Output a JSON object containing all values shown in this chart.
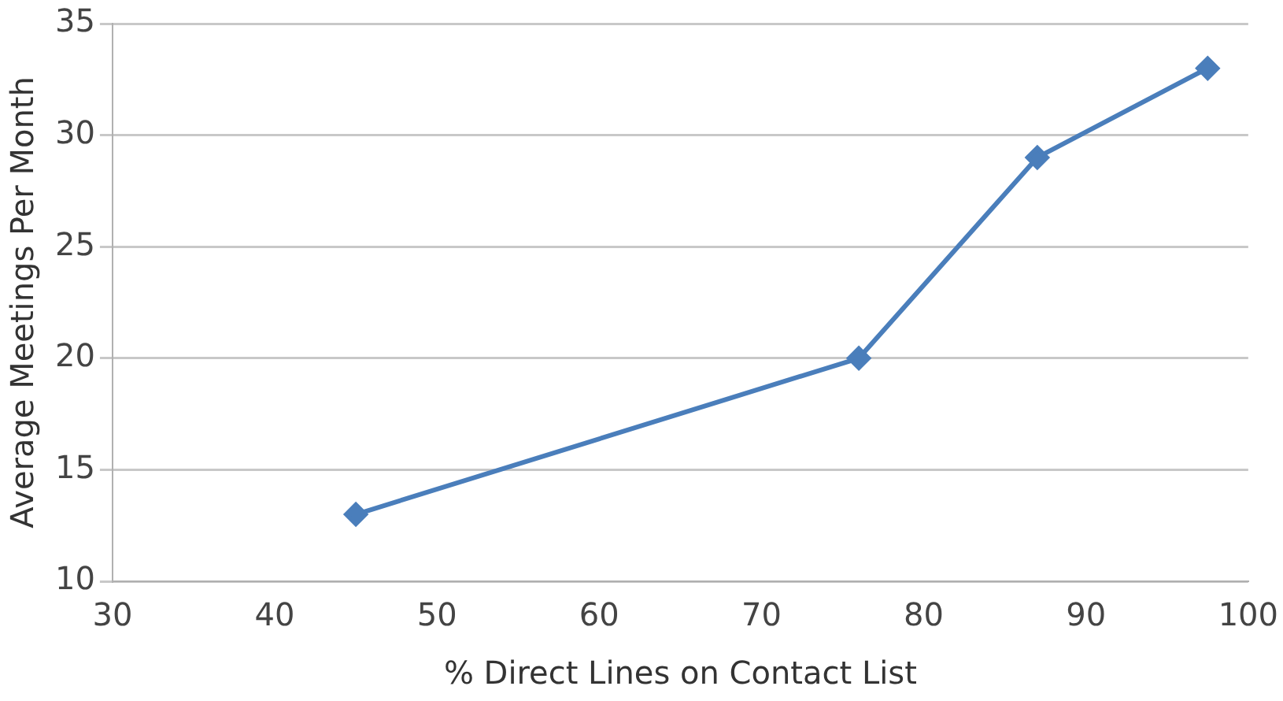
{
  "chart_data": {
    "type": "line",
    "xlabel": "% Direct Lines on Contact List",
    "ylabel": "Average Meetings Per Month",
    "x": [
      45,
      76,
      87,
      97.5
    ],
    "series": [
      {
        "color": "#4a7ebb",
        "values": [
          13,
          20,
          29,
          33
        ]
      }
    ],
    "xlim": [
      30,
      100
    ],
    "xticks": [
      30,
      40,
      50,
      60,
      70,
      80,
      90,
      100
    ],
    "ylim": [
      10,
      35
    ],
    "yticks": [
      10,
      15,
      20,
      25,
      30,
      35
    ],
    "grid": "y",
    "legend": false,
    "marker": "diamond",
    "line_style": "solid"
  }
}
